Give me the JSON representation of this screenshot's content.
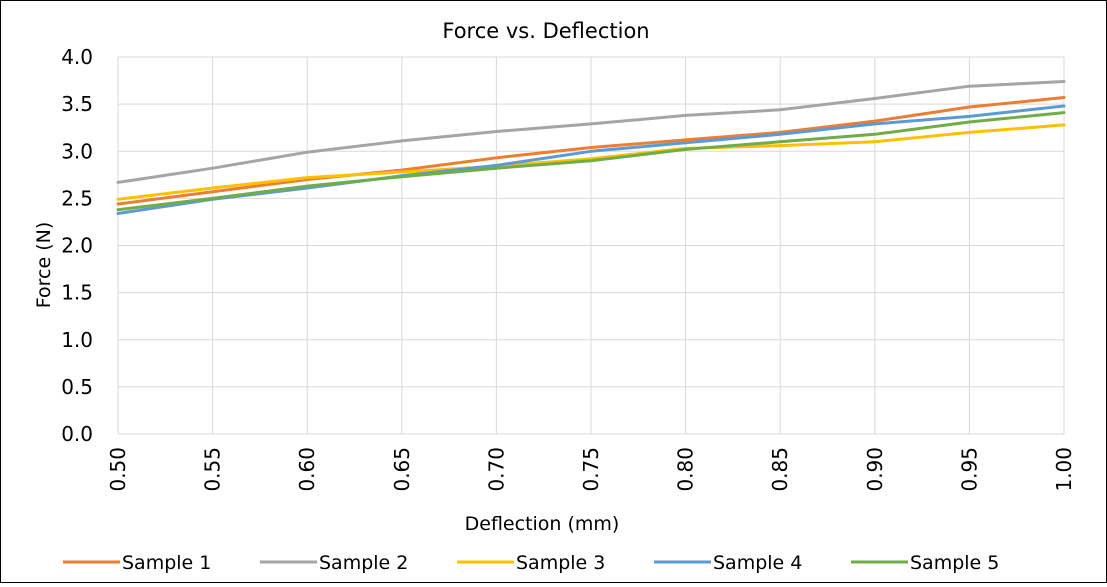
{
  "chart_data": {
    "type": "line",
    "title": "Force vs. Deflection",
    "xlabel": "Deflection (mm)",
    "ylabel": "Force (N)",
    "x": [
      0.5,
      0.55,
      0.6,
      0.65,
      0.7,
      0.75,
      0.8,
      0.85,
      0.9,
      0.95,
      1.0
    ],
    "x_tick_labels": [
      "0.50",
      "0.55",
      "0.60",
      "0.65",
      "0.70",
      "0.75",
      "0.80",
      "0.85",
      "0.90",
      "0.95",
      "1.00"
    ],
    "y_ticks": [
      0.0,
      0.5,
      1.0,
      1.5,
      2.0,
      2.5,
      3.0,
      3.5,
      4.0
    ],
    "y_tick_labels": [
      "0.0",
      "0.5",
      "1.0",
      "1.5",
      "2.0",
      "2.5",
      "3.0",
      "3.5",
      "4.0"
    ],
    "xlim": [
      0.5,
      1.0
    ],
    "ylim": [
      0.0,
      4.0
    ],
    "grid": true,
    "legend_position": "bottom",
    "series": [
      {
        "name": "Sample 1",
        "color": "#ED7D31",
        "values": [
          2.44,
          2.57,
          2.7,
          2.8,
          2.93,
          3.04,
          3.12,
          3.2,
          3.32,
          3.47,
          3.57
        ]
      },
      {
        "name": "Sample 2",
        "color": "#A5A5A5",
        "values": [
          2.67,
          2.82,
          2.99,
          3.11,
          3.21,
          3.29,
          3.38,
          3.44,
          3.56,
          3.69,
          3.74
        ]
      },
      {
        "name": "Sample 3",
        "color": "#FFC000",
        "values": [
          2.49,
          2.61,
          2.72,
          2.78,
          2.84,
          2.92,
          3.03,
          3.06,
          3.1,
          3.2,
          3.28
        ]
      },
      {
        "name": "Sample 4",
        "color": "#5B9BD5",
        "values": [
          2.34,
          2.49,
          2.61,
          2.74,
          2.85,
          3.0,
          3.09,
          3.18,
          3.29,
          3.37,
          3.48
        ]
      },
      {
        "name": "Sample 5",
        "color": "#70AD47",
        "values": [
          2.38,
          2.5,
          2.63,
          2.73,
          2.82,
          2.9,
          3.02,
          3.1,
          3.18,
          3.31,
          3.41
        ]
      }
    ]
  }
}
